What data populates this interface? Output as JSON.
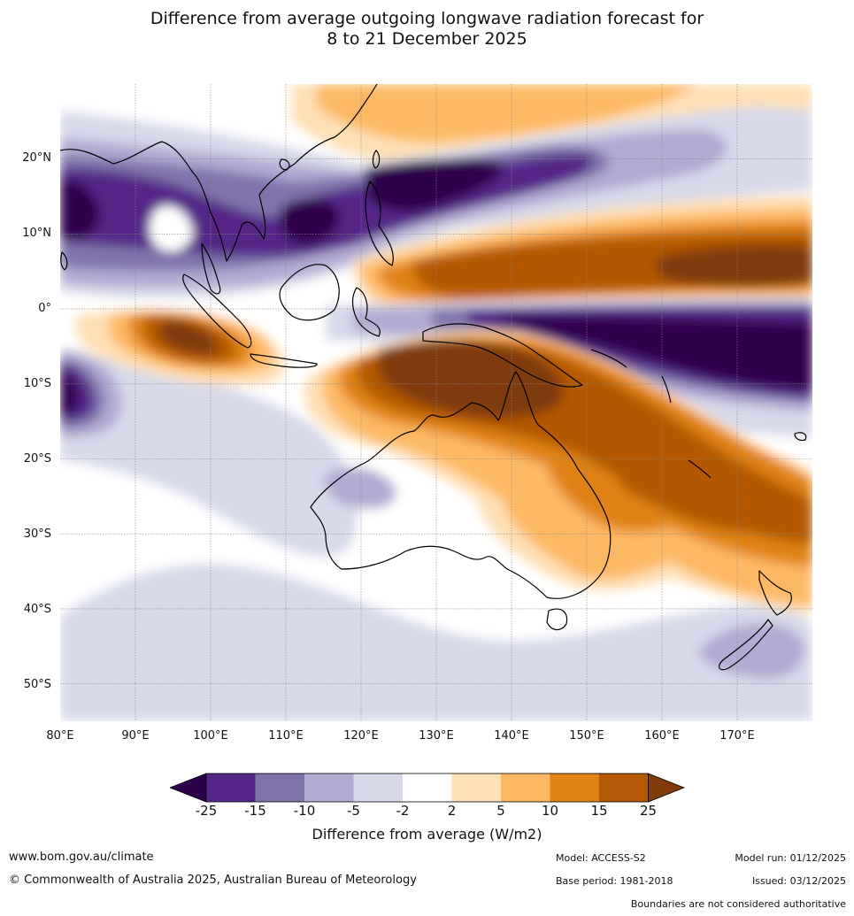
{
  "title": {
    "line1": "Difference from average outgoing longwave radiation forecast for",
    "line2": "8 to 21 December 2025"
  },
  "map": {
    "lat_labels": [
      "20°N",
      "10°N",
      "0°",
      "10°S",
      "20°S",
      "30°S",
      "40°S",
      "50°S"
    ],
    "lat_values": [
      20,
      10,
      0,
      -10,
      -20,
      -30,
      -40,
      -50
    ],
    "lon_labels": [
      "80°E",
      "90°E",
      "100°E",
      "110°E",
      "120°E",
      "130°E",
      "140°E",
      "150°E",
      "160°E",
      "170°E"
    ],
    "lon_values": [
      80,
      90,
      100,
      110,
      120,
      130,
      140,
      150,
      160,
      170
    ],
    "extent": {
      "lon": [
        80,
        180
      ],
      "lat": [
        -55,
        30
      ]
    }
  },
  "colorbar": {
    "tick_labels": [
      "-25",
      "-15",
      "-10",
      "-5",
      "-2",
      "2",
      "5",
      "10",
      "15",
      "25"
    ],
    "colors": [
      "#2d004b",
      "#542788",
      "#8073ac",
      "#b2abd2",
      "#d8daeb",
      "#ffffff",
      "#fee0b6",
      "#fdb863",
      "#e08214",
      "#b35806",
      "#7f3b08"
    ],
    "title": "Difference from average (W/m2)"
  },
  "footer": {
    "url": "www.bom.gov.au/climate",
    "copyright": "© Commonwealth of Australia 2025, Australian Bureau of Meteorology",
    "model": "Model: ACCESS-S2",
    "base_period": "Base period: 1981-2018",
    "model_run": "Model run: 01/12/2025",
    "issued": "Issued: 03/12/2025",
    "disclaimer": "Boundaries are not considered authoritative"
  }
}
